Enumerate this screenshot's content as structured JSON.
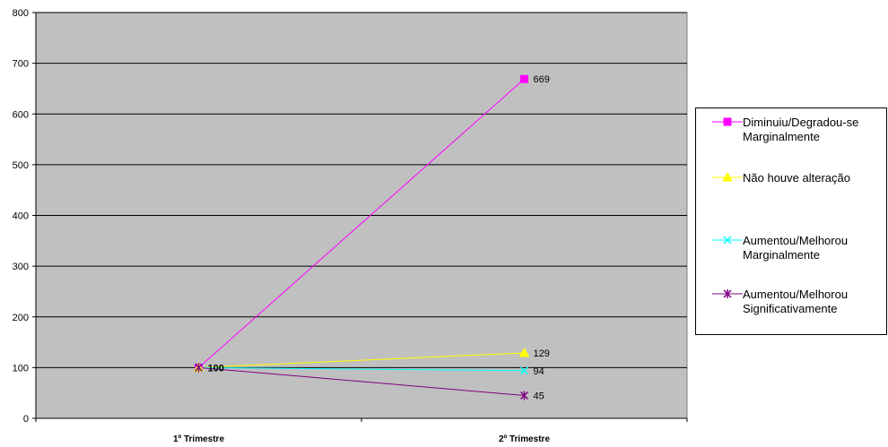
{
  "chart_data": {
    "type": "line",
    "categories": [
      "1º Trimestre",
      "2º Trimestre"
    ],
    "ylim": [
      0,
      800
    ],
    "yticks": [
      0,
      100,
      200,
      300,
      400,
      500,
      600,
      700,
      800
    ],
    "grid": true,
    "legend_position": "right",
    "background_color": "#c0c0c0",
    "series": [
      {
        "name": "Diminuiu/Degradou-se\nMarginalmente",
        "values": [
          100,
          669
        ],
        "color": "#ff00ff",
        "marker": "square"
      },
      {
        "name": "Não houve alteração",
        "values": [
          100,
          129
        ],
        "color": "#ffff00",
        "marker": "triangle"
      },
      {
        "name": "Aumentou/Melhorou\nMarginalmente",
        "values": [
          100,
          94
        ],
        "color": "#00ffff",
        "marker": "x"
      },
      {
        "name": "Aumentou/Melhorou\nSignificativamente",
        "values": [
          100,
          45
        ],
        "color": "#800080",
        "marker": "star"
      }
    ],
    "data_labels": [
      "100",
      "669",
      "129",
      "94",
      "45"
    ]
  }
}
